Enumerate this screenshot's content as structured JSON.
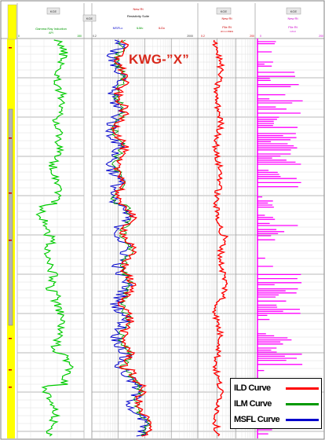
{
  "well_name": "KWG-”X”",
  "header": {
    "small_buttons": [
      "KGE",
      "KGE",
      "KGE",
      "KGE"
    ],
    "track1": {
      "name": "Gamma Ray Induction",
      "unit": "API",
      "scale_min": "0",
      "scale_max": "150"
    },
    "track2": {
      "title_top": "New Rt",
      "title": "Resistivity Suite",
      "curve_labels": [
        "MSFLc",
        "ILMc",
        "ILDc"
      ],
      "scale_min": "0.2",
      "scale_max": "2000"
    },
    "track3": {
      "title_top": "New Rt",
      "title": "File Rt",
      "unit": "ohm.m/DEG",
      "scale_min": "0.2",
      "scale_max": "200"
    },
    "track4": {
      "title_top": "New Rt",
      "title": "File Rt",
      "unit": "in/ind",
      "scale_min": "0",
      "scale_max": "200"
    }
  },
  "legend": [
    {
      "label": "ILD Curve",
      "color": "#ff0000"
    },
    {
      "label": "ILM Curve",
      "color": "#009900"
    },
    {
      "label": "MSFL Curve",
      "color": "#0000cc"
    }
  ],
  "colors": {
    "gamma_ray": "#00cc00",
    "ild": "#ff0000",
    "ilm": "#009900",
    "msfl": "#0000cc",
    "track4_bars": "#ff00ff",
    "depth_track": "#ffff00",
    "header_accent": "#cc0000",
    "grid": "#d6d6d6"
  }
}
